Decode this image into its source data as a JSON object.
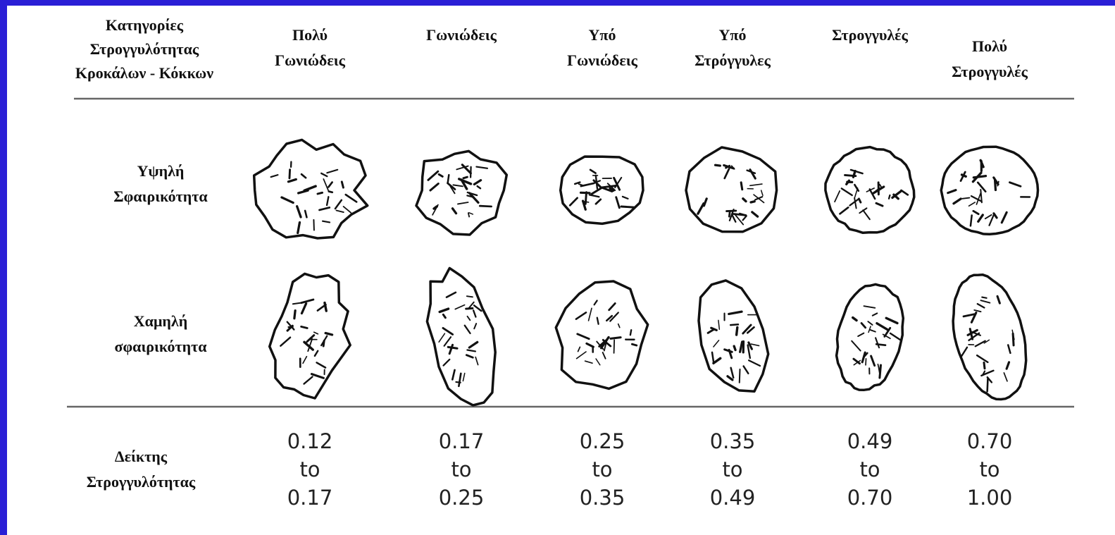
{
  "header": {
    "title": [
      "Κατηγορίες",
      "Στρογγυλότητας",
      "Κροκάλων - Κόκκων"
    ]
  },
  "columns": [
    {
      "label": [
        "Πολύ",
        "Γωνιώδεις"
      ],
      "index": [
        "0.12",
        "to",
        "0.17"
      ]
    },
    {
      "label": [
        "Γωνιώδεις"
      ],
      "index": [
        "0.17",
        "to",
        "0.25"
      ]
    },
    {
      "label": [
        "Υπό",
        "Γωνιώδεις"
      ],
      "index": [
        "0.25",
        "to",
        "0.35"
      ]
    },
    {
      "label": [
        "Υπό",
        "Στρόγγυλες"
      ],
      "index": [
        "0.35",
        "to",
        "0.49"
      ]
    },
    {
      "label": [
        "Στρογγυλές"
      ],
      "index": [
        "0.49",
        "to",
        "0.70"
      ]
    },
    {
      "label": [
        "Πολύ",
        "Στρογγυλές"
      ],
      "index": [
        "0.70",
        "to",
        "1.00"
      ]
    }
  ],
  "rows": [
    {
      "label": [
        "Υψηλή",
        "Σφαιρικότητα"
      ]
    },
    {
      "label": [
        "Χαμηλή",
        "σφαιρικότητα"
      ]
    }
  ],
  "index_label": [
    "Δείκτης",
    "Στρογγυλότητας"
  ]
}
